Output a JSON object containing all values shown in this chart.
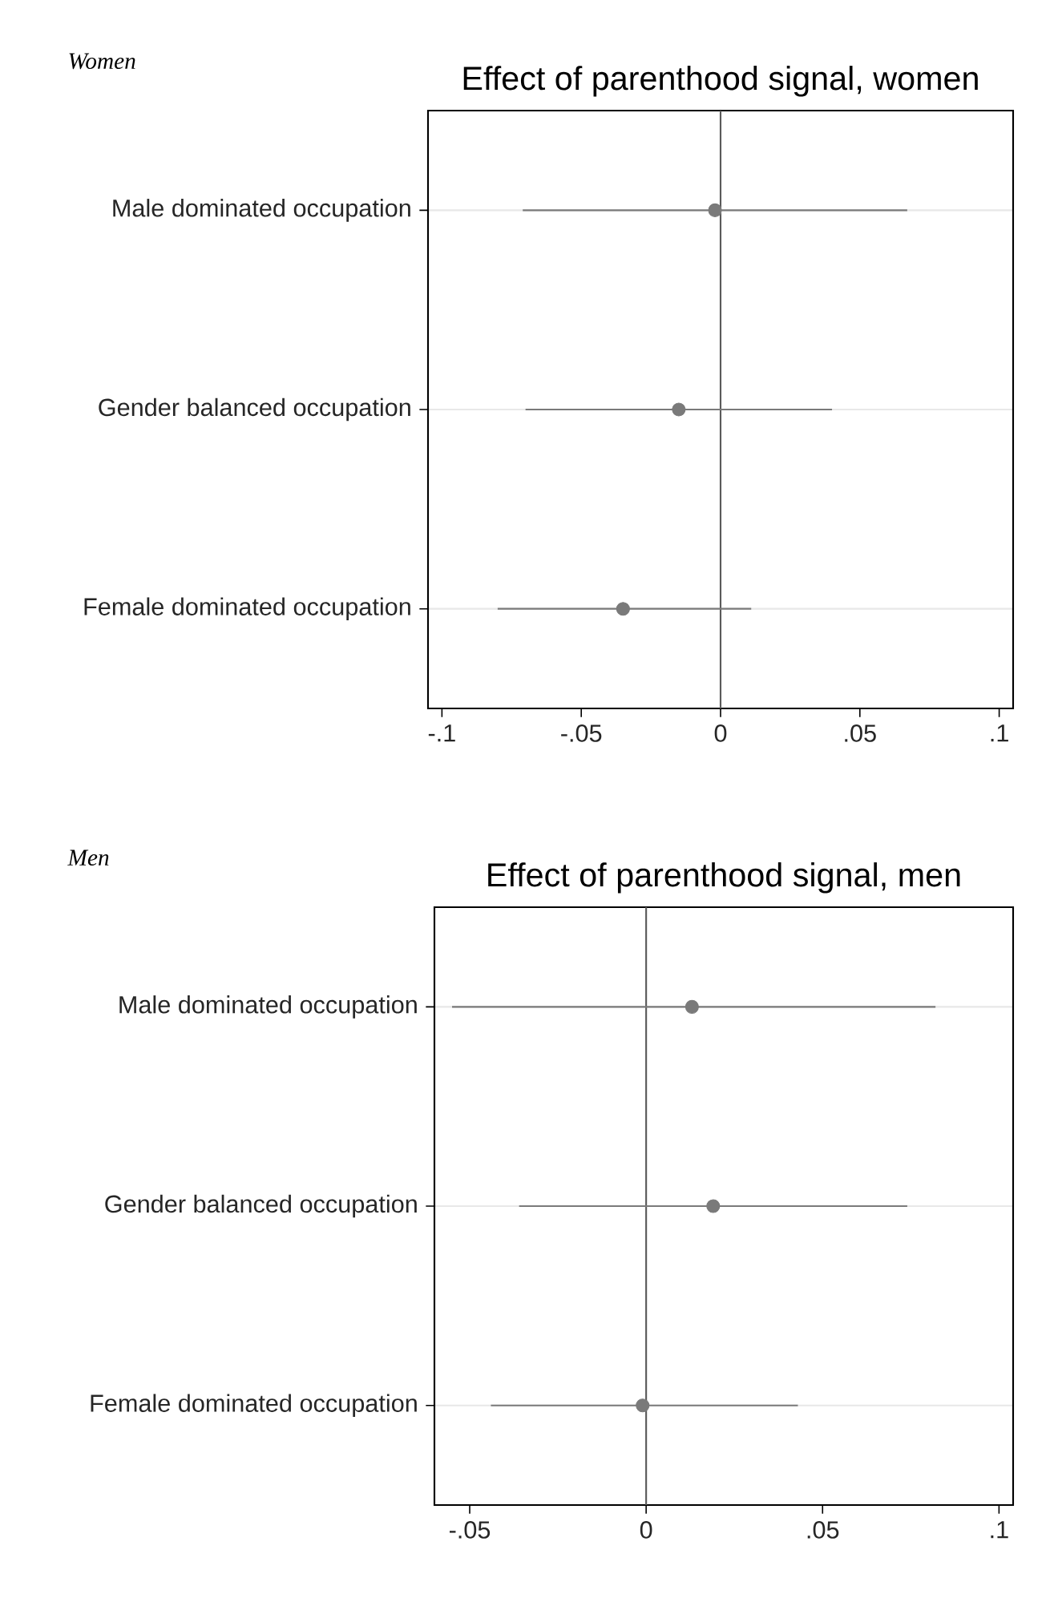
{
  "chart_data": [
    {
      "type": "scatter",
      "orientation": "horizontal",
      "title": "Effect of parenthood signal, women",
      "annotations": [
        "*Women*"
      ],
      "categories": [
        "Male dominated occupation",
        "Gender balanced occupation",
        "Female dominated occupation"
      ],
      "values": [
        -0.002,
        -0.015,
        -0.035
      ],
      "errors": [
        [
          -0.071,
          0.067
        ],
        [
          -0.07,
          0.04
        ],
        [
          -0.08,
          0.011
        ]
      ],
      "color": "#7a7a7a",
      "xlim": [
        -0.105,
        0.105
      ],
      "xticks": [
        {
          "value": -0.1,
          "label": "-.1"
        },
        {
          "value": -0.05,
          "label": "-.05"
        },
        {
          "value": 0,
          "label": "0"
        },
        {
          "value": 0.05,
          "label": ".05"
        },
        {
          "value": 0.1,
          "label": ".1"
        }
      ],
      "ref_lines": [
        {
          "axis": "x",
          "value": 0,
          "color": "#5a5a5a"
        }
      ],
      "grid": "y",
      "marker": "circle"
    },
    {
      "type": "scatter",
      "orientation": "horizontal",
      "title": "Effect of parenthood signal, men",
      "annotations": [
        "*Men*"
      ],
      "categories": [
        "Male dominated occupation",
        "Gender balanced occupation",
        "Female dominated occupation"
      ],
      "values": [
        0.013,
        0.019,
        -0.001
      ],
      "errors": [
        [
          -0.055,
          0.082
        ],
        [
          -0.036,
          0.074
        ],
        [
          -0.044,
          0.043
        ]
      ],
      "color": "#7a7a7a",
      "xlim": [
        -0.06,
        0.104
      ],
      "xticks": [
        {
          "value": -0.05,
          "label": "-.05"
        },
        {
          "value": 0,
          "label": "0"
        },
        {
          "value": 0.05,
          "label": ".05"
        },
        {
          "value": 0.1,
          "label": ".1"
        }
      ],
      "ref_lines": [
        {
          "axis": "x",
          "value": 0,
          "color": "#5a5a5a"
        }
      ],
      "grid": "y",
      "marker": "circle"
    }
  ]
}
